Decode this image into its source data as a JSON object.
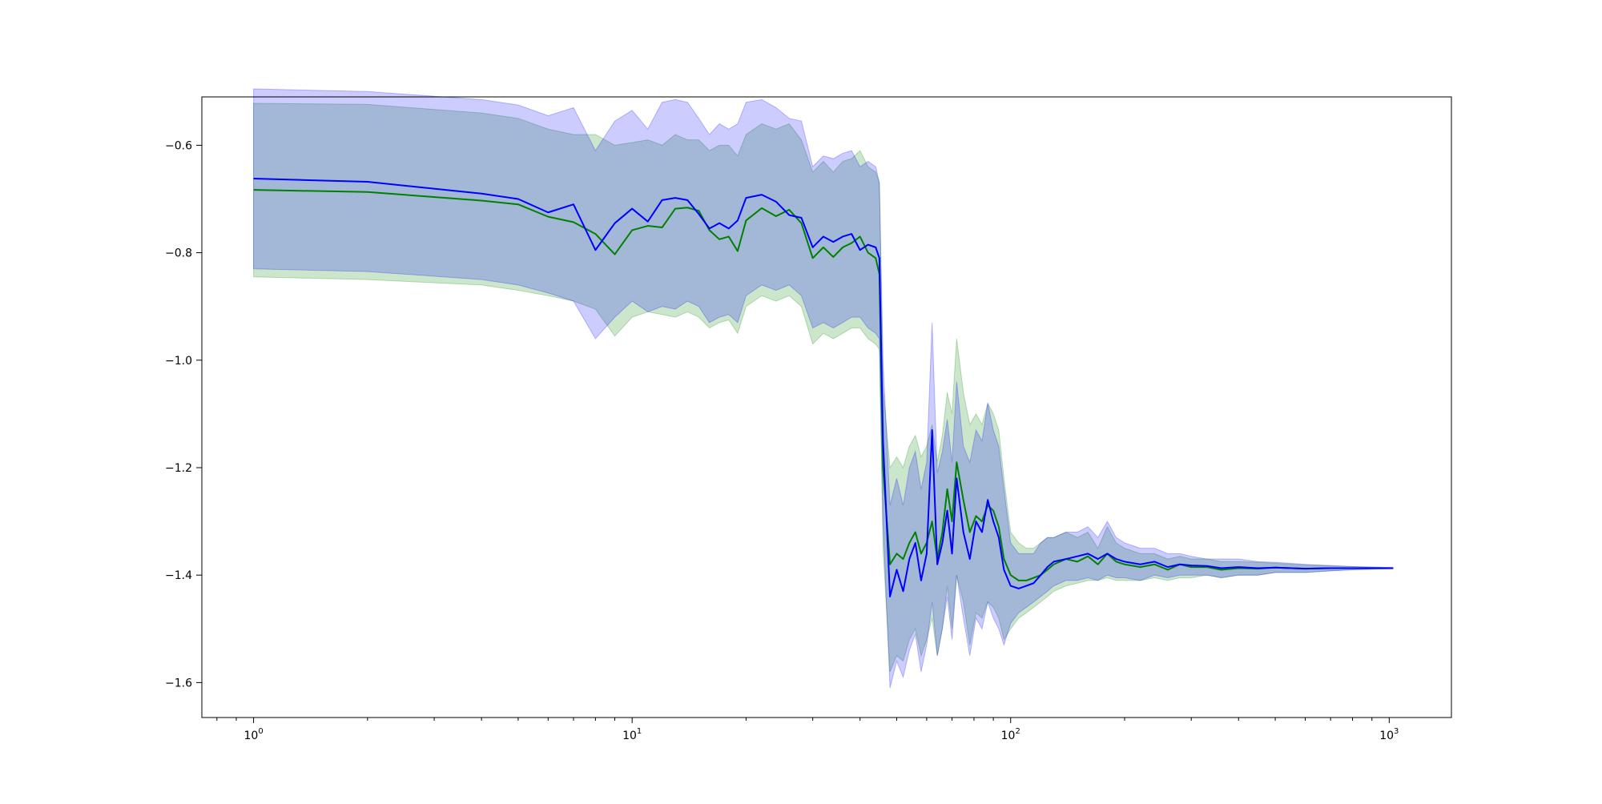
{
  "chart_data": {
    "type": "line",
    "title": "",
    "xlabel": "",
    "ylabel": "",
    "xscale": "log",
    "xlim": [
      0.73,
      1460
    ],
    "ylim": [
      -1.665,
      -0.51
    ],
    "grid": false,
    "legend": "none",
    "x_ticks": [
      {
        "value": 1,
        "base": "10",
        "exp": "0"
      },
      {
        "value": 10,
        "base": "10",
        "exp": "1"
      },
      {
        "value": 100,
        "base": "10",
        "exp": "2"
      },
      {
        "value": 1000,
        "base": "10",
        "exp": "3"
      }
    ],
    "y_ticks": [
      {
        "value": -0.6,
        "label": "−0.6"
      },
      {
        "value": -0.8,
        "label": "−0.8"
      },
      {
        "value": -1.0,
        "label": "−1.0"
      },
      {
        "value": -1.2,
        "label": "−1.2"
      },
      {
        "value": -1.4,
        "label": "−1.4"
      },
      {
        "value": -1.6,
        "label": "−1.6"
      }
    ],
    "x": [
      1,
      2,
      4,
      5,
      6,
      7,
      8,
      9,
      10,
      11,
      12,
      13,
      14,
      15,
      16,
      17,
      18,
      19,
      20,
      22,
      24,
      26,
      28,
      30,
      32,
      34,
      36,
      38,
      40,
      42,
      44,
      45,
      46,
      48,
      50,
      52,
      54,
      56,
      58,
      60,
      62,
      64,
      66,
      68,
      70,
      72,
      75,
      78,
      81,
      84,
      87,
      90,
      93,
      96,
      100,
      105,
      110,
      115,
      120,
      125,
      130,
      140,
      150,
      160,
      170,
      180,
      190,
      200,
      220,
      240,
      260,
      280,
      300,
      330,
      360,
      400,
      450,
      500,
      600,
      700,
      800,
      900,
      1024
    ],
    "series": [
      {
        "color": "#008000",
        "band_color": "#008000",
        "values": [
          -0.683,
          -0.687,
          -0.703,
          -0.71,
          -0.733,
          -0.743,
          -0.765,
          -0.803,
          -0.758,
          -0.75,
          -0.753,
          -0.718,
          -0.716,
          -0.722,
          -0.758,
          -0.775,
          -0.77,
          -0.797,
          -0.74,
          -0.717,
          -0.732,
          -0.72,
          -0.745,
          -0.81,
          -0.79,
          -0.808,
          -0.79,
          -0.782,
          -0.77,
          -0.8,
          -0.81,
          -0.84,
          -1.2,
          -1.38,
          -1.36,
          -1.37,
          -1.34,
          -1.32,
          -1.36,
          -1.34,
          -1.3,
          -1.37,
          -1.32,
          -1.24,
          -1.3,
          -1.19,
          -1.26,
          -1.32,
          -1.29,
          -1.3,
          -1.27,
          -1.28,
          -1.31,
          -1.37,
          -1.4,
          -1.41,
          -1.41,
          -1.405,
          -1.4,
          -1.39,
          -1.38,
          -1.37,
          -1.375,
          -1.365,
          -1.38,
          -1.36,
          -1.375,
          -1.38,
          -1.385,
          -1.38,
          -1.39,
          -1.38,
          -1.385,
          -1.385,
          -1.39,
          -1.387,
          -1.388,
          -1.386,
          -1.388,
          -1.387,
          -1.387,
          -1.387,
          -1.387
        ],
        "lower": [
          -0.845,
          -0.85,
          -0.86,
          -0.87,
          -0.88,
          -0.89,
          -0.905,
          -0.955,
          -0.92,
          -0.91,
          -0.915,
          -0.92,
          -0.91,
          -0.92,
          -0.94,
          -0.93,
          -0.925,
          -0.95,
          -0.9,
          -0.88,
          -0.89,
          -0.88,
          -0.9,
          -0.97,
          -0.95,
          -0.96,
          -0.95,
          -0.94,
          -0.94,
          -0.96,
          -0.97,
          -0.98,
          -1.35,
          -1.58,
          -1.55,
          -1.56,
          -1.52,
          -1.5,
          -1.55,
          -1.52,
          -1.48,
          -1.55,
          -1.5,
          -1.42,
          -1.5,
          -1.4,
          -1.45,
          -1.53,
          -1.47,
          -1.48,
          -1.45,
          -1.46,
          -1.48,
          -1.52,
          -1.5,
          -1.48,
          -1.47,
          -1.46,
          -1.45,
          -1.44,
          -1.43,
          -1.42,
          -1.415,
          -1.41,
          -1.41,
          -1.405,
          -1.41,
          -1.41,
          -1.41,
          -1.405,
          -1.41,
          -1.405,
          -1.405,
          -1.4,
          -1.405,
          -1.4,
          -1.4,
          -1.395,
          -1.395,
          -1.392,
          -1.39,
          -1.389,
          -1.388
        ],
        "upper": [
          -0.522,
          -0.524,
          -0.54,
          -0.55,
          -0.57,
          -0.58,
          -0.58,
          -0.6,
          -0.595,
          -0.59,
          -0.6,
          -0.58,
          -0.59,
          -0.59,
          -0.61,
          -0.6,
          -0.6,
          -0.62,
          -0.58,
          -0.56,
          -0.57,
          -0.56,
          -0.59,
          -0.65,
          -0.63,
          -0.65,
          -0.63,
          -0.625,
          -0.61,
          -0.64,
          -0.65,
          -0.67,
          -1.05,
          -1.2,
          -1.18,
          -1.2,
          -1.16,
          -1.14,
          -1.18,
          -1.16,
          -1.12,
          -1.19,
          -1.14,
          -1.06,
          -1.1,
          -0.96,
          -1.06,
          -1.12,
          -1.1,
          -1.12,
          -1.08,
          -1.1,
          -1.13,
          -1.22,
          -1.32,
          -1.34,
          -1.35,
          -1.35,
          -1.34,
          -1.33,
          -1.33,
          -1.32,
          -1.33,
          -1.32,
          -1.35,
          -1.31,
          -1.34,
          -1.35,
          -1.36,
          -1.36,
          -1.37,
          -1.365,
          -1.37,
          -1.37,
          -1.375,
          -1.375,
          -1.376,
          -1.378,
          -1.381,
          -1.383,
          -1.384,
          -1.385,
          -1.386
        ]
      },
      {
        "color": "#0000ff",
        "band_color": "#0000ff",
        "values": [
          -0.662,
          -0.668,
          -0.69,
          -0.7,
          -0.725,
          -0.71,
          -0.795,
          -0.745,
          -0.718,
          -0.742,
          -0.702,
          -0.698,
          -0.702,
          -0.728,
          -0.755,
          -0.745,
          -0.755,
          -0.74,
          -0.698,
          -0.692,
          -0.705,
          -0.73,
          -0.735,
          -0.79,
          -0.77,
          -0.78,
          -0.77,
          -0.765,
          -0.795,
          -0.785,
          -0.79,
          -0.81,
          -1.15,
          -1.44,
          -1.39,
          -1.43,
          -1.37,
          -1.34,
          -1.41,
          -1.36,
          -1.13,
          -1.38,
          -1.34,
          -1.28,
          -1.36,
          -1.22,
          -1.32,
          -1.37,
          -1.3,
          -1.32,
          -1.26,
          -1.3,
          -1.33,
          -1.39,
          -1.42,
          -1.425,
          -1.42,
          -1.415,
          -1.4,
          -1.385,
          -1.375,
          -1.37,
          -1.365,
          -1.36,
          -1.37,
          -1.36,
          -1.37,
          -1.375,
          -1.38,
          -1.375,
          -1.385,
          -1.38,
          -1.382,
          -1.383,
          -1.387,
          -1.385,
          -1.387,
          -1.386,
          -1.388,
          -1.387,
          -1.387,
          -1.387,
          -1.387
        ],
        "lower": [
          -0.83,
          -0.835,
          -0.85,
          -0.86,
          -0.875,
          -0.89,
          -0.96,
          -0.92,
          -0.89,
          -0.91,
          -0.9,
          -0.905,
          -0.89,
          -0.9,
          -0.93,
          -0.92,
          -0.915,
          -0.93,
          -0.88,
          -0.86,
          -0.87,
          -0.86,
          -0.88,
          -0.94,
          -0.93,
          -0.94,
          -0.93,
          -0.92,
          -0.92,
          -0.94,
          -0.95,
          -0.96,
          -1.3,
          -1.61,
          -1.56,
          -1.59,
          -1.54,
          -1.51,
          -1.58,
          -1.53,
          -1.45,
          -1.55,
          -1.5,
          -1.44,
          -1.52,
          -1.4,
          -1.48,
          -1.55,
          -1.48,
          -1.5,
          -1.45,
          -1.48,
          -1.5,
          -1.53,
          -1.49,
          -1.47,
          -1.46,
          -1.45,
          -1.44,
          -1.43,
          -1.42,
          -1.41,
          -1.41,
          -1.405,
          -1.41,
          -1.4,
          -1.405,
          -1.405,
          -1.41,
          -1.4,
          -1.405,
          -1.4,
          -1.4,
          -1.4,
          -1.405,
          -1.4,
          -1.4,
          -1.395,
          -1.395,
          -1.392,
          -1.39,
          -1.389,
          -1.388
        ],
        "upper": [
          -0.495,
          -0.5,
          -0.515,
          -0.525,
          -0.545,
          -0.53,
          -0.61,
          -0.555,
          -0.535,
          -0.57,
          -0.52,
          -0.515,
          -0.52,
          -0.55,
          -0.58,
          -0.56,
          -0.57,
          -0.56,
          -0.52,
          -0.515,
          -0.53,
          -0.55,
          -0.555,
          -0.64,
          -0.62,
          -0.625,
          -0.615,
          -0.61,
          -0.64,
          -0.63,
          -0.64,
          -0.67,
          -1.0,
          -1.27,
          -1.22,
          -1.27,
          -1.2,
          -1.17,
          -1.24,
          -1.19,
          -0.93,
          -1.21,
          -1.17,
          -1.11,
          -1.19,
          -1.04,
          -1.16,
          -1.19,
          -1.13,
          -1.15,
          -1.08,
          -1.13,
          -1.16,
          -1.24,
          -1.34,
          -1.36,
          -1.36,
          -1.36,
          -1.34,
          -1.33,
          -1.33,
          -1.32,
          -1.32,
          -1.31,
          -1.33,
          -1.3,
          -1.33,
          -1.34,
          -1.35,
          -1.35,
          -1.36,
          -1.36,
          -1.365,
          -1.37,
          -1.37,
          -1.37,
          -1.375,
          -1.376,
          -1.38,
          -1.382,
          -1.384,
          -1.385,
          -1.386
        ]
      }
    ]
  }
}
